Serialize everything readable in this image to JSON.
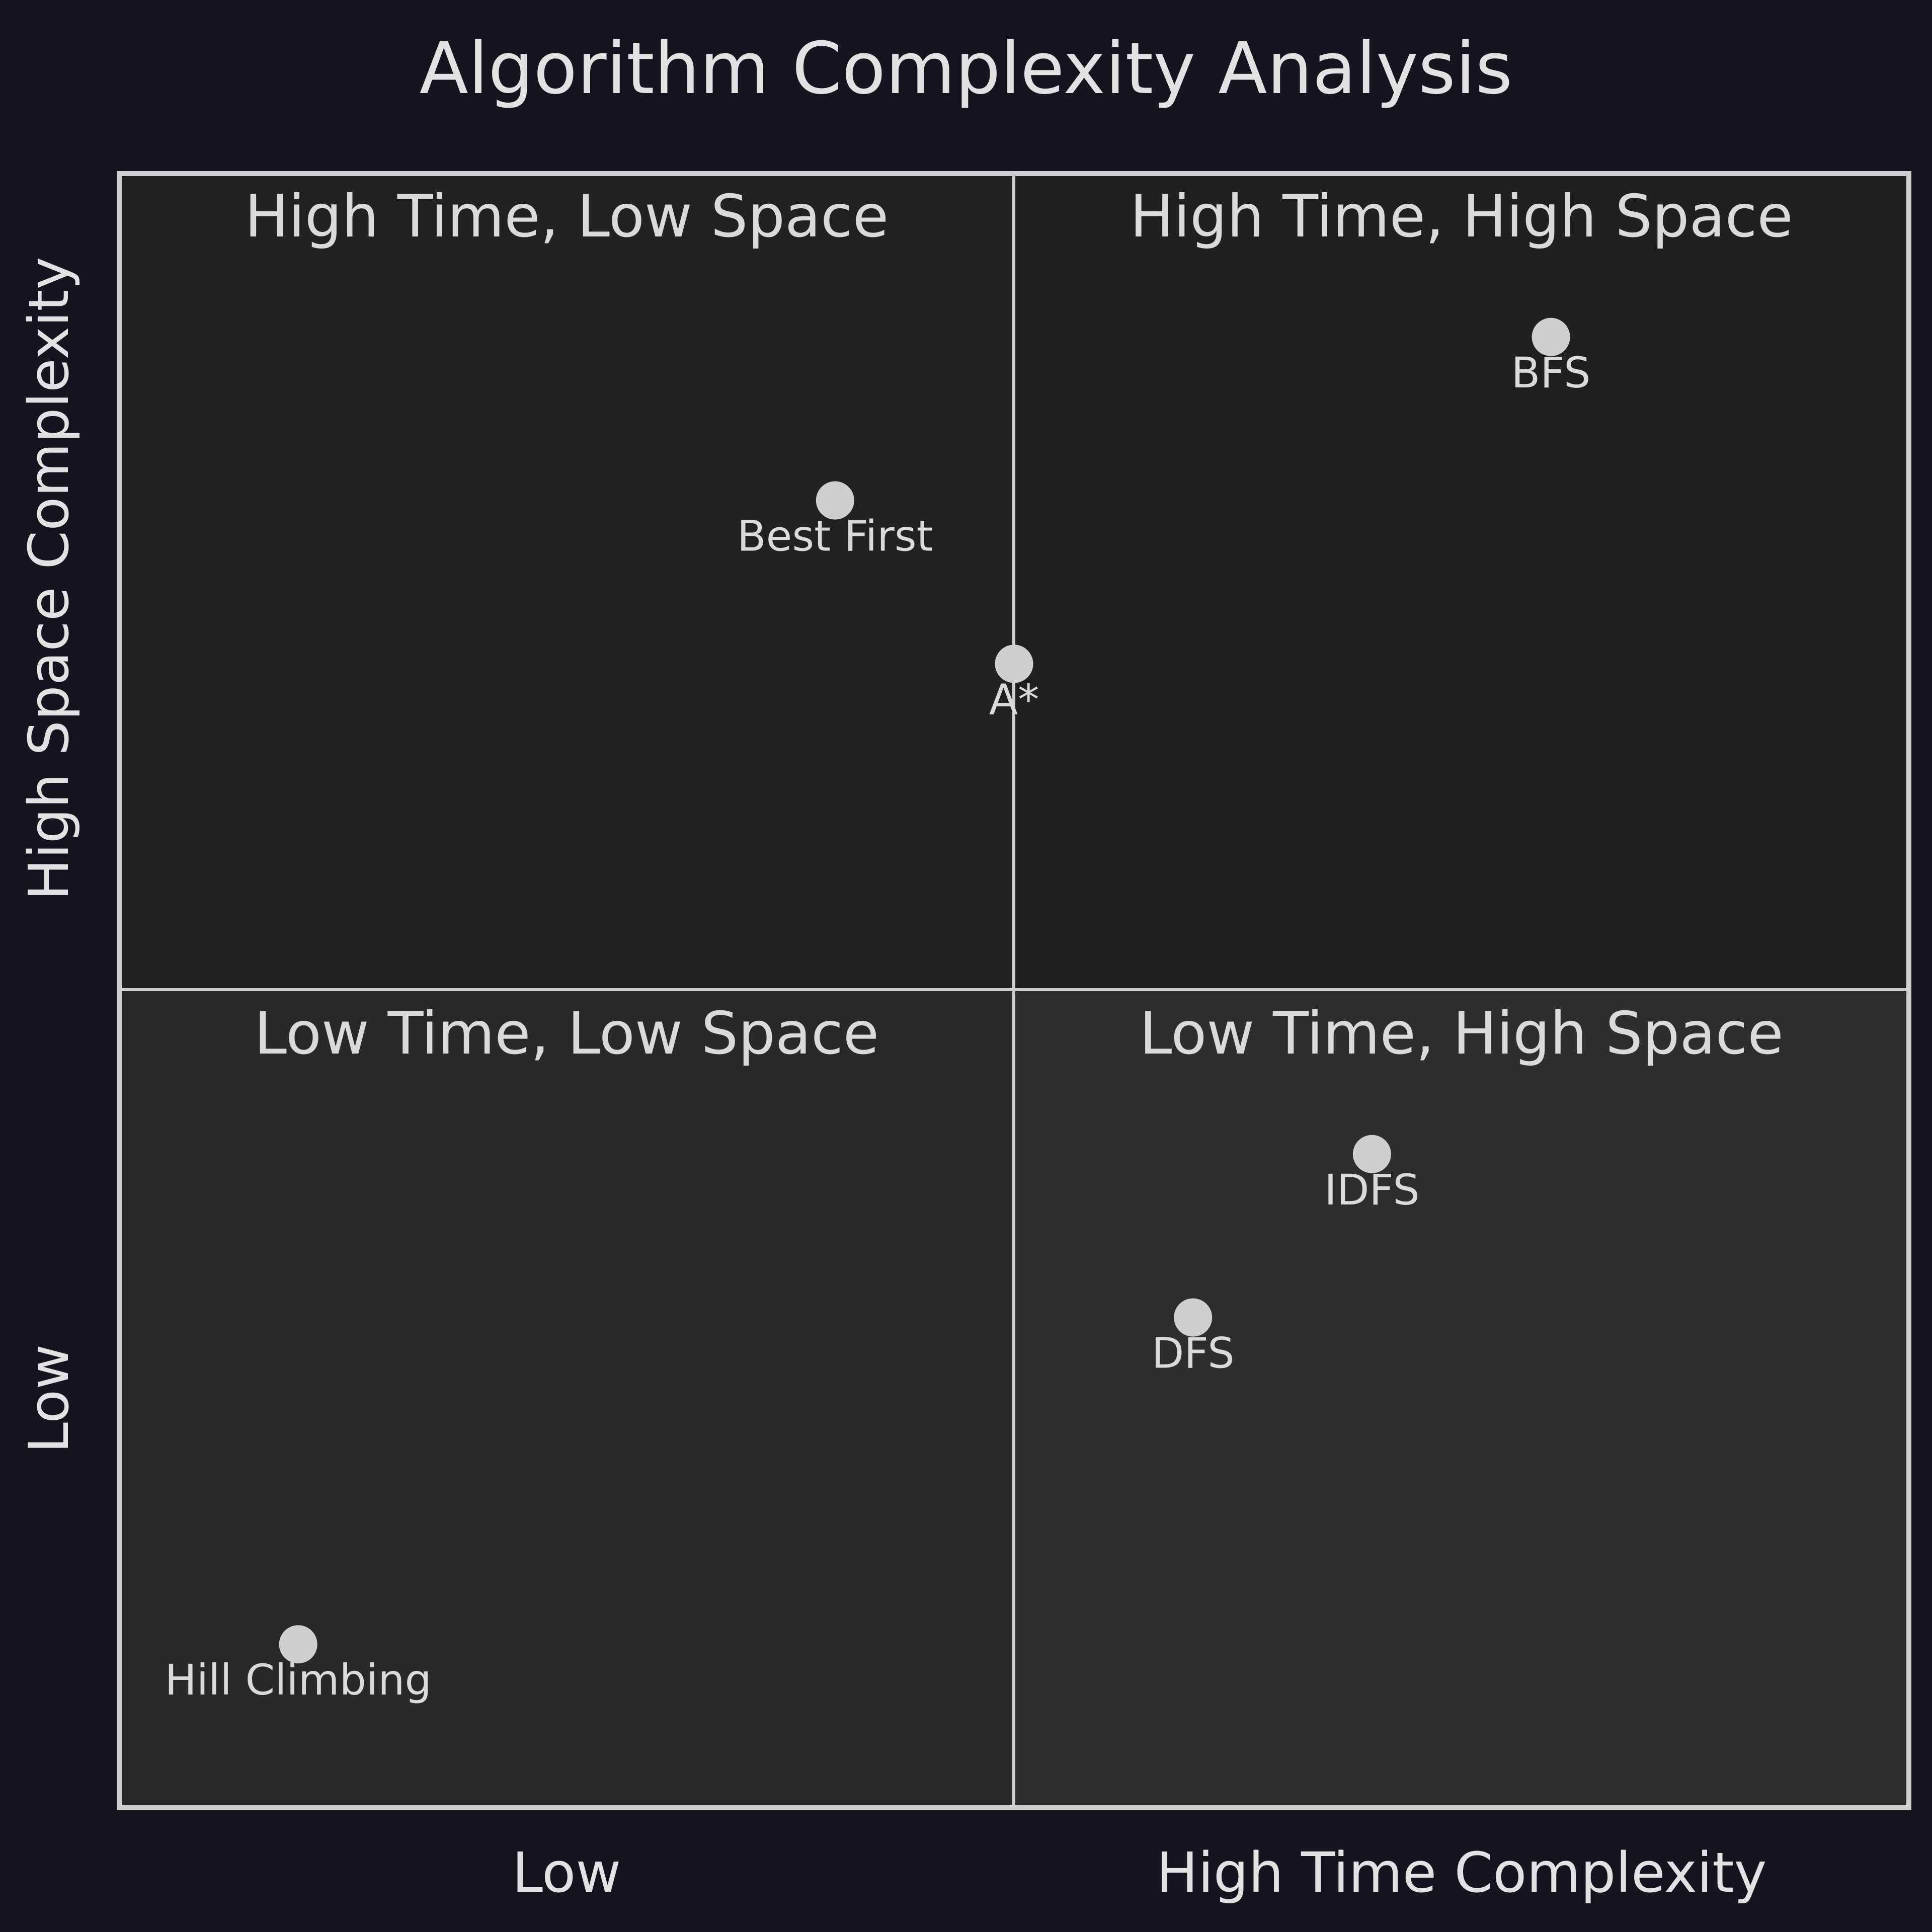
{
  "chart_data": {
    "type": "scatter",
    "title": "Algorithm Complexity Analysis",
    "x_axis": {
      "range": [
        0,
        1
      ],
      "low_label": "Low",
      "high_label": "High Time Complexity"
    },
    "y_axis": {
      "range": [
        0,
        1
      ],
      "low_label": "Low",
      "high_label": "High Space Complexity"
    },
    "quadrants": [
      {
        "id": "top-left",
        "label": "High Time, Low Space",
        "color": "#212322"
      },
      {
        "id": "top-right",
        "label": "High Time, High Space",
        "color": "#1f2120"
      },
      {
        "id": "bottom-left",
        "label": "Low Time, Low Space",
        "color": "#282a29"
      },
      {
        "id": "bottom-right",
        "label": "Low Time, High Space",
        "color": "#2d2f2e"
      }
    ],
    "points": [
      {
        "label": "BFS",
        "x": 0.8,
        "y": 0.9
      },
      {
        "label": "Best First",
        "x": 0.4,
        "y": 0.8
      },
      {
        "label": "A*",
        "x": 0.5,
        "y": 0.7
      },
      {
        "label": "IDFS",
        "x": 0.7,
        "y": 0.4
      },
      {
        "label": "DFS",
        "x": 0.6,
        "y": 0.3
      },
      {
        "label": "Hill Climbing",
        "x": 0.1,
        "y": 0.1
      }
    ],
    "grid": false,
    "point_color": "#cfcfcf",
    "background_color": "#15141f"
  }
}
